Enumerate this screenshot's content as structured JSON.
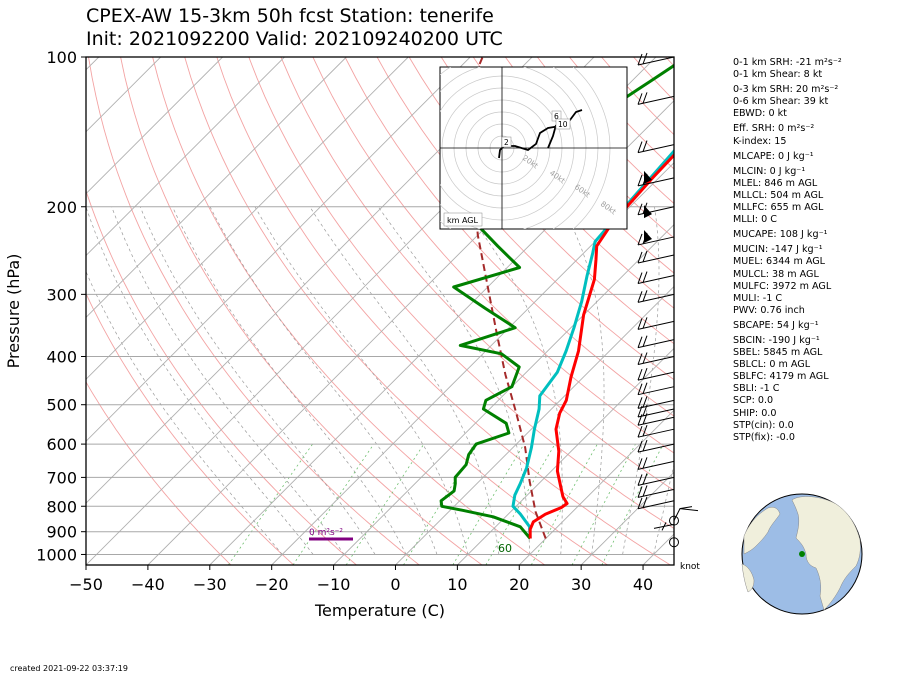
{
  "title_line1": "CPEX-AW 15-3km  50h fcst  Station: tenerife",
  "title_line2": "Init: 2021092200  Valid: 202109240200 UTC",
  "created": "created 2021-09-22 03:37:19",
  "indices": [
    "0-1 km SRH: -21 m²s⁻²",
    "0-1 km Shear: 8 kt",
    "0-3 km SRH: 20 m²s⁻²",
    "0-6 km Shear: 39 kt",
    "EBWD: 0 kt",
    "Eff. SRH: 0 m²s⁻²",
    "K-index: 15",
    "MLCAPE: 0 J kg⁻¹",
    "MLCIN: 0 J kg⁻¹",
    "MLEL: 846 m AGL",
    "MLLCL: 504 m AGL",
    "MLLFC: 655 m AGL",
    "MLLI: 0 C",
    "MUCAPE: 108 J kg⁻¹",
    "MUCIN: -147 J kg⁻¹",
    "MUEL: 6344 m AGL",
    "MULCL: 38 m AGL",
    "MULFC: 3972 m AGL",
    "MULI: -1 C",
    "PWV: 0.76 inch",
    "SBCAPE: 54 J kg⁻¹",
    "SBCIN: -190 J kg⁻¹",
    "SBEL: 5845 m AGL",
    "SBLCL: 0 m AGL",
    "SBLFC: 4179 m AGL",
    "SBLI: -1 C",
    "SCP: 0.0",
    "SHIP: 0.0",
    "STP(cin): 0.0",
    "STP(fix): -0.0"
  ],
  "chart_data": {
    "type": "line",
    "xlabel": "Temperature (C)",
    "ylabel": "Pressure (hPa)",
    "xlim": [
      -50,
      45
    ],
    "ylim": [
      1050,
      100
    ],
    "y_scale": "log",
    "x_ticks": [
      -50,
      -40,
      -30,
      -20,
      -10,
      0,
      10,
      20,
      30,
      40
    ],
    "y_ticks": [
      100,
      200,
      300,
      400,
      500,
      600,
      700,
      800,
      900,
      1000
    ],
    "skew_deg": 45,
    "grid": true,
    "srh_label": "0 m²s⁻²",
    "srh_color": "#800080",
    "surface_label": "60",
    "wind_units_label": "knot",
    "series": [
      {
        "color": "#ff0000",
        "points": [
          [
            17.5,
            929
          ],
          [
            16,
            890
          ],
          [
            15.3,
            860
          ],
          [
            16,
            830
          ],
          [
            17.5,
            805
          ],
          [
            17.8,
            790
          ],
          [
            16,
            765
          ],
          [
            14,
            730
          ],
          [
            11,
            680
          ],
          [
            8,
            620
          ],
          [
            4,
            560
          ],
          [
            2,
            520
          ],
          [
            1,
            490
          ],
          [
            -2,
            440
          ],
          [
            -5,
            390
          ],
          [
            -10,
            330
          ],
          [
            -14,
            280
          ],
          [
            -17,
            255
          ],
          [
            -19,
            240
          ],
          [
            -20,
            220
          ],
          [
            -20.5,
            200
          ],
          [
            -21,
            175
          ],
          [
            -21.3,
            150
          ],
          [
            -21.8,
            130
          ],
          [
            -20.8,
            110
          ],
          [
            -19.5,
            100
          ]
        ]
      },
      {
        "color": "#00bfbf",
        "points": [
          [
            17.5,
            929
          ],
          [
            15.5,
            880
          ],
          [
            12,
            830
          ],
          [
            9.5,
            800
          ],
          [
            8,
            760
          ],
          [
            7,
            720
          ],
          [
            5.5,
            670
          ],
          [
            3,
            610
          ],
          [
            0.5,
            560
          ],
          [
            -2,
            510
          ],
          [
            -4,
            480
          ],
          [
            -5,
            430
          ],
          [
            -7,
            390
          ],
          [
            -9.5,
            350
          ],
          [
            -12.5,
            310
          ],
          [
            -15.8,
            275
          ],
          [
            -18.5,
            248
          ],
          [
            -20,
            235
          ],
          [
            -20.8,
            200
          ],
          [
            -21.6,
            165
          ],
          [
            -22.3,
            140
          ],
          [
            -22.8,
            120
          ],
          [
            -21.8,
            105
          ],
          [
            -20.5,
            100
          ]
        ]
      },
      {
        "color": "#008000",
        "points": [
          [
            17.5,
            929
          ],
          [
            14,
            880
          ],
          [
            8,
            840
          ],
          [
            2,
            815
          ],
          [
            -2,
            800
          ],
          [
            -3,
            780
          ],
          [
            -2.5,
            745
          ],
          [
            -3.5,
            720
          ],
          [
            -4.5,
            700
          ],
          [
            -4.8,
            660
          ],
          [
            -6,
            630
          ],
          [
            -6.5,
            600
          ],
          [
            -3,
            570
          ],
          [
            -5,
            545
          ],
          [
            -11,
            510
          ],
          [
            -12,
            490
          ],
          [
            -10,
            460
          ],
          [
            -12,
            420
          ],
          [
            -17,
            395
          ],
          [
            -25,
            380
          ],
          [
            -19,
            350
          ],
          [
            -27,
            320
          ],
          [
            -35.5,
            290
          ],
          [
            -28,
            265
          ],
          [
            -35,
            240
          ],
          [
            -42.5,
            215
          ],
          [
            -42,
            195
          ],
          [
            -40,
            170
          ],
          [
            -36.5,
            155
          ],
          [
            -40.5,
            140
          ],
          [
            -39,
            125
          ],
          [
            -37,
            112
          ],
          [
            -35,
            100
          ]
        ]
      },
      {
        "color": "#a52a2a",
        "dashed": true,
        "points": [
          [
            20,
            929
          ],
          [
            14,
            820
          ],
          [
            8,
            710
          ],
          [
            2,
            610
          ],
          [
            -5,
            520
          ],
          [
            -13,
            435
          ],
          [
            -21,
            360
          ],
          [
            -30,
            290
          ],
          [
            -40,
            228
          ],
          [
            -50,
            175
          ],
          [
            -61,
            130
          ],
          [
            -67,
            105
          ],
          [
            -68,
            100
          ]
        ]
      }
    ],
    "hodograph": {
      "label": "km AGL",
      "ring_labels": [
        "20kt",
        "40kt",
        "60kt",
        "80kt"
      ],
      "height_labels": [
        "2",
        "6",
        "10"
      ]
    }
  }
}
